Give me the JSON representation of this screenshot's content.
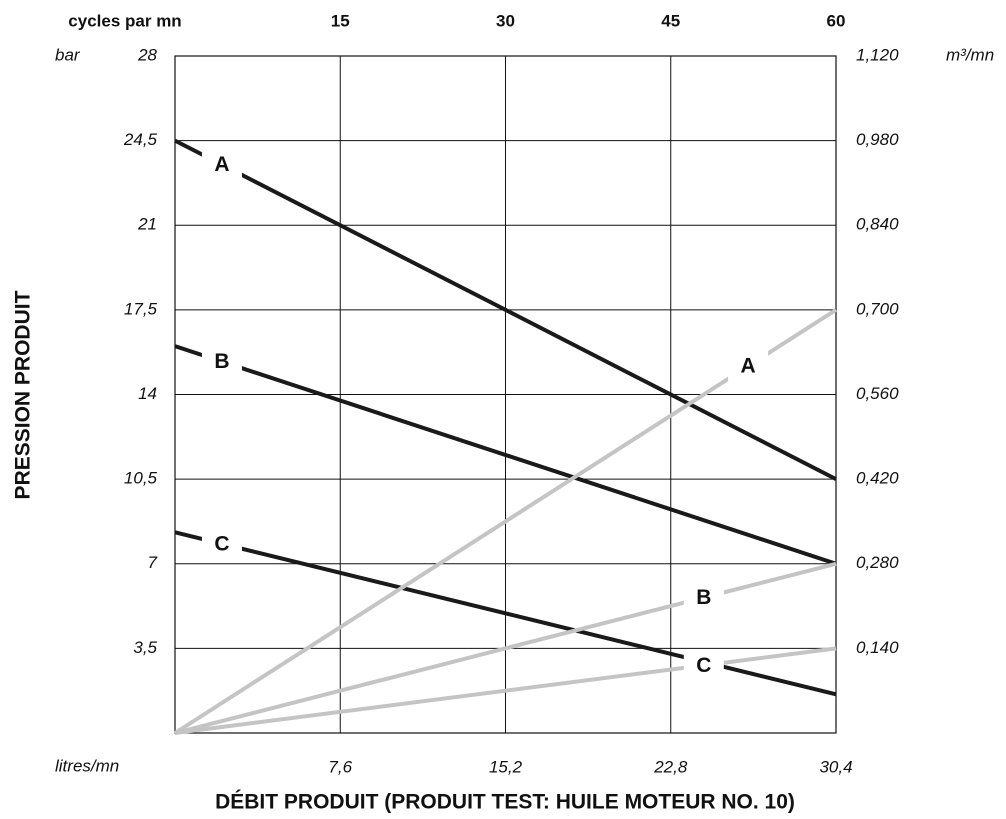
{
  "chart_data": {
    "type": "line",
    "x_label": "DÉBIT PRODUIT (PRODUIT TEST: HUILE MOTEUR NO. 10)",
    "y_label": "PRESSION PRODUIT",
    "x_unit": "litres/mn",
    "y_unit": "bar",
    "y2_unit": "m³/mn",
    "x2_unit": "cycles par mn",
    "x": [
      0,
      30.4
    ],
    "xlim": [
      0,
      30.4
    ],
    "xticks": [
      {
        "value": 7.6,
        "label": "7,6"
      },
      {
        "value": 15.2,
        "label": "15,2"
      },
      {
        "value": 22.8,
        "label": "22,8"
      },
      {
        "value": 30.4,
        "label": "30,4"
      }
    ],
    "x2lim": [
      0,
      60
    ],
    "x2ticks": [
      15,
      30,
      45,
      60
    ],
    "ylim": [
      0,
      28
    ],
    "yticks": [
      {
        "value": 3.5,
        "label": "3,5"
      },
      7,
      {
        "value": 10.5,
        "label": "10,5"
      },
      14,
      {
        "value": 17.5,
        "label": "17,5"
      },
      21,
      {
        "value": 24.5,
        "label": "24,5"
      },
      28
    ],
    "y2lim": [
      0,
      1.12
    ],
    "y2ticks": [
      {
        "value": 0.14,
        "label": "0,140"
      },
      {
        "value": 0.28,
        "label": "0,280"
      },
      {
        "value": 0.42,
        "label": "0,420"
      },
      {
        "value": 0.56,
        "label": "0,560"
      },
      {
        "value": 0.7,
        "label": "0,700"
      },
      {
        "value": 0.84,
        "label": "0,840"
      },
      {
        "value": 0.98,
        "label": "0,980"
      },
      {
        "value": 1.12,
        "label": "1,120"
      }
    ],
    "grid": true,
    "series": [
      {
        "name": "A",
        "color": "#1a1a1a",
        "values": [
          24.5,
          10.5
        ]
      },
      {
        "name": "B",
        "color": "#1a1a1a",
        "values": [
          16,
          7
        ]
      },
      {
        "name": "C",
        "color": "#1a1a1a",
        "values": [
          8.3,
          1.6
        ]
      },
      {
        "name": "A",
        "color": "#c4c4c4",
        "axis": "y2",
        "values": [
          0,
          0.7
        ]
      },
      {
        "name": "B",
        "color": "#c4c4c4",
        "axis": "y2",
        "values": [
          0,
          0.28
        ]
      },
      {
        "name": "C",
        "color": "#c4c4c4",
        "axis": "y2",
        "values": [
          0,
          0.14
        ]
      }
    ]
  }
}
